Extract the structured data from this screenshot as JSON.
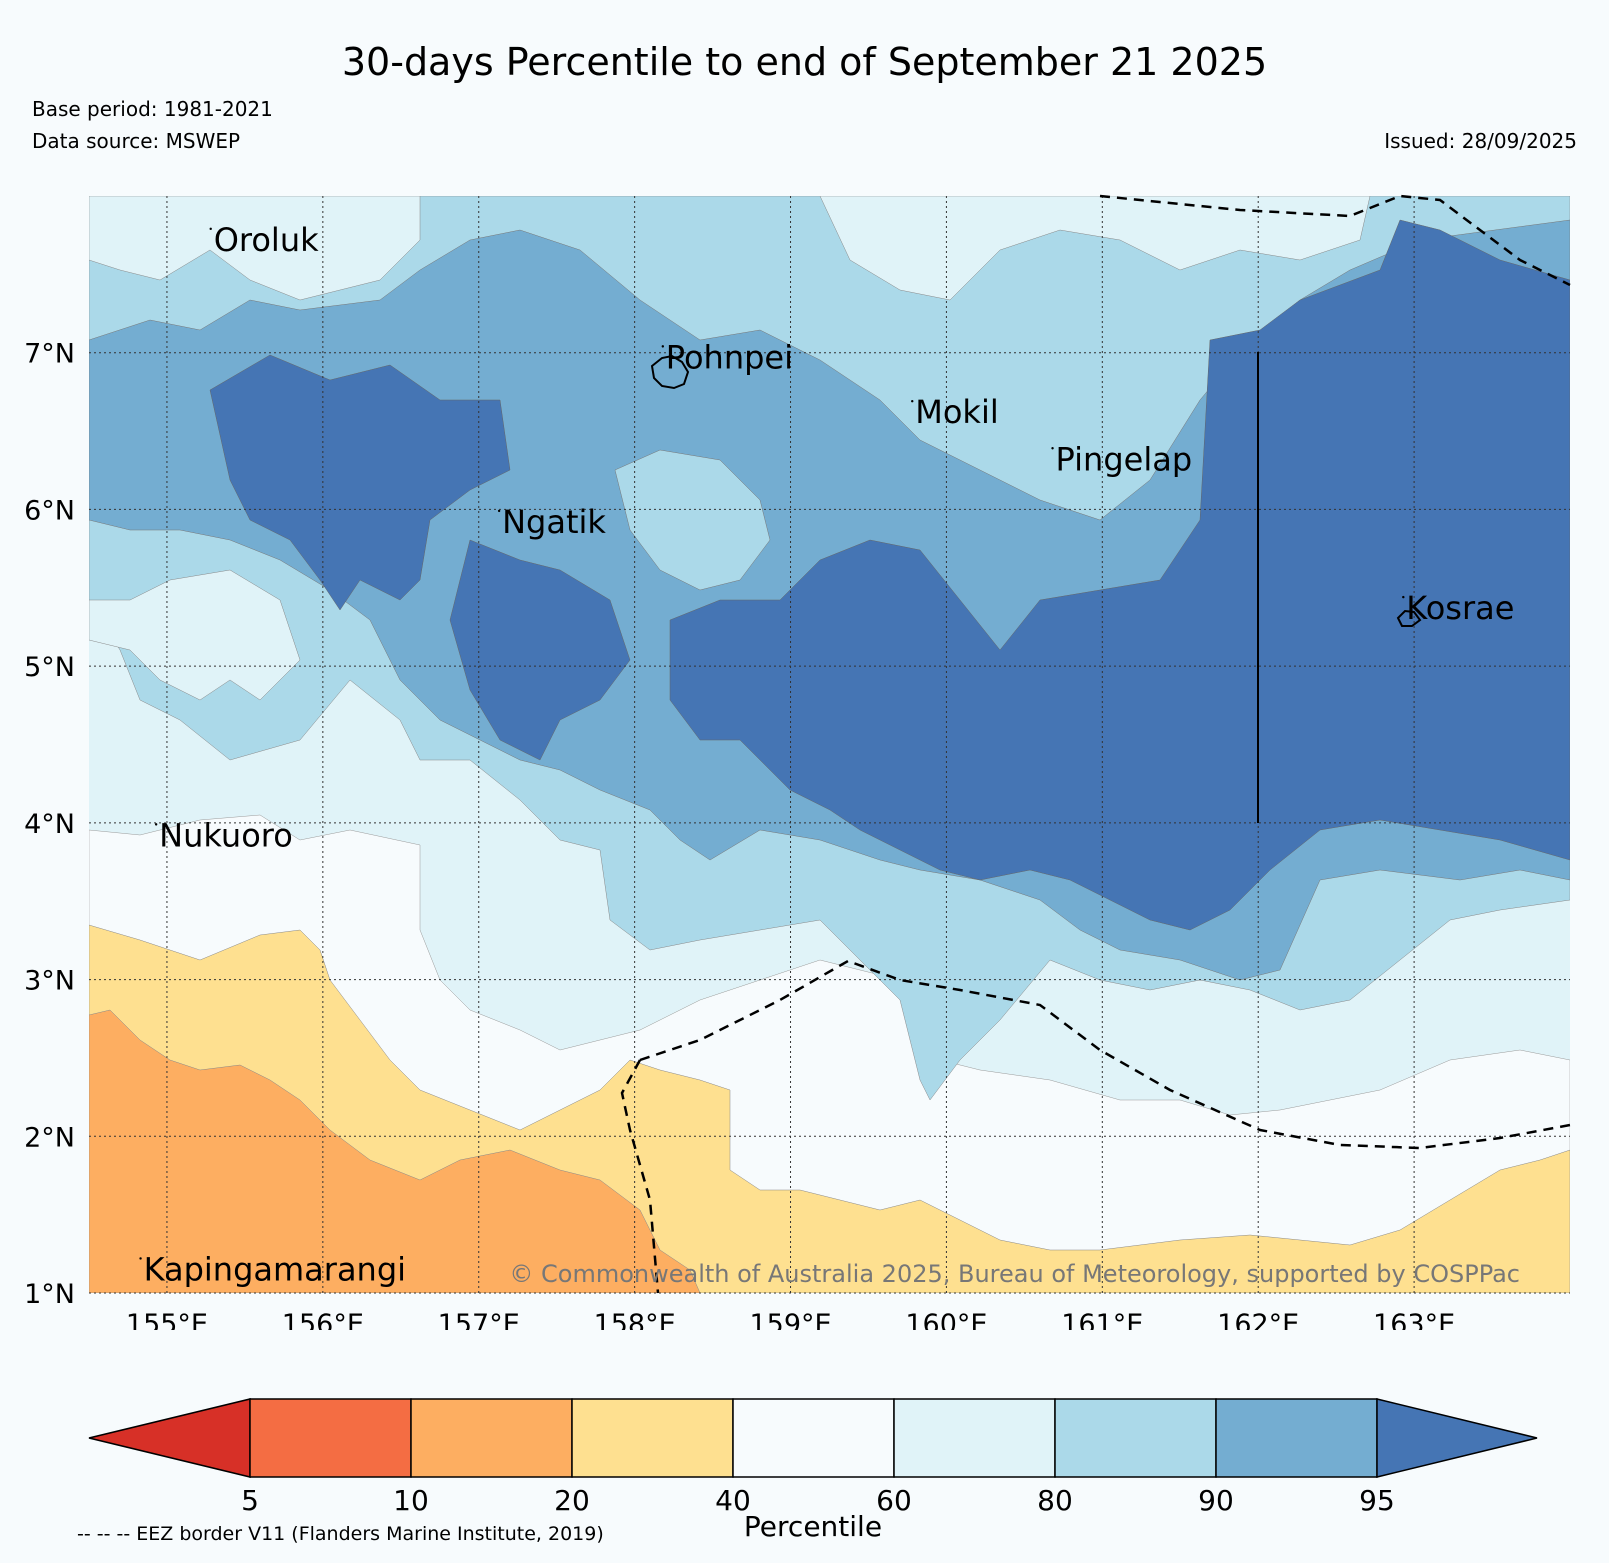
{
  "header": {
    "title": "30-days Percentile to end of September 21 2025",
    "base_period": "Base period: 1981-2021",
    "data_source": "Data source: MSWEP",
    "issued": "Issued: 28/09/2025"
  },
  "map": {
    "lon_range": [
      154.5,
      164.0
    ],
    "lat_range": [
      1.0,
      8.0
    ],
    "lon_ticks": [
      {
        "value": 155,
        "label": "155°E"
      },
      {
        "value": 156,
        "label": "156°E"
      },
      {
        "value": 157,
        "label": "157°E"
      },
      {
        "value": 158,
        "label": "158°E"
      },
      {
        "value": 159,
        "label": "159°E"
      },
      {
        "value": 160,
        "label": "160°E"
      },
      {
        "value": 161,
        "label": "161°E"
      },
      {
        "value": 162,
        "label": "162°E"
      },
      {
        "value": 163,
        "label": "163°E"
      }
    ],
    "lat_ticks": [
      {
        "value": 1,
        "label": "1°N"
      },
      {
        "value": 2,
        "label": "2°N"
      },
      {
        "value": 3,
        "label": "3°N"
      },
      {
        "value": 4,
        "label": "4°N"
      },
      {
        "value": 5,
        "label": "5°N"
      },
      {
        "value": 6,
        "label": "6°N"
      },
      {
        "value": 7,
        "label": "7°N"
      }
    ],
    "places": [
      {
        "name": "Oroluk",
        "lon": 155.3,
        "lat": 7.65
      },
      {
        "name": "Pohnpei",
        "lon": 158.2,
        "lat": 6.9
      },
      {
        "name": "Mokil",
        "lon": 159.8,
        "lat": 6.55
      },
      {
        "name": "Pingelap",
        "lon": 160.7,
        "lat": 6.25
      },
      {
        "name": "Ngatik",
        "lon": 157.15,
        "lat": 5.85
      },
      {
        "name": "Kosrae",
        "lon": 162.95,
        "lat": 5.3
      },
      {
        "name": "Nukuoro",
        "lon": 154.95,
        "lat": 3.85
      },
      {
        "name": "Kapingamarangi",
        "lon": 154.85,
        "lat": 1.08
      }
    ],
    "copyright": "© Commonwealth of Australia 2025, Bureau of Meteorology, supported by COSPPac"
  },
  "colorbar": {
    "label": "Percentile",
    "ticks": [
      "5",
      "10",
      "20",
      "40",
      "60",
      "80",
      "90",
      "95"
    ],
    "colors": [
      "#d73027",
      "#f46d43",
      "#fdae61",
      "#fee090",
      "#f7fbfd",
      "#e0f3f8",
      "#abd9e9",
      "#74add1",
      "#4575b4"
    ]
  },
  "footer": {
    "eez_note": "-- -- -- EEZ border V11 (Flanders Marine Institute, 2019)"
  }
}
